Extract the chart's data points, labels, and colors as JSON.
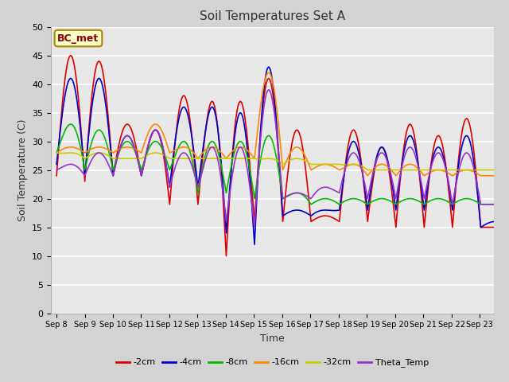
{
  "title": "Soil Temperatures Set A",
  "xlabel": "Time",
  "ylabel": "Soil Temperature (C)",
  "ylim": [
    0,
    50
  ],
  "yticks": [
    0,
    5,
    10,
    15,
    20,
    25,
    30,
    35,
    40,
    45,
    50
  ],
  "annotation": "BC_met",
  "fig_bg": "#d3d3d3",
  "plot_bg": "#e8e8e8",
  "series": [
    {
      "key": "2cm",
      "color": "#dd0000",
      "label": "-2cm"
    },
    {
      "key": "4cm",
      "color": "#0000cc",
      "label": "-4cm"
    },
    {
      "key": "8cm",
      "color": "#00bb00",
      "label": "-8cm"
    },
    {
      "key": "16cm",
      "color": "#ff8800",
      "label": "-16cm"
    },
    {
      "key": "32cm",
      "color": "#cccc00",
      "label": "-32cm"
    },
    {
      "key": "theta",
      "color": "#9933cc",
      "label": "Theta_Temp"
    }
  ],
  "x_labels": [
    "Sep 8",
    "Sep 9",
    "Sep 10",
    "Sep 11",
    "Sep 12",
    "Sep 13",
    "Sep 14",
    "Sep 15",
    "Sep 16",
    "Sep 17",
    "Sep 18",
    "Sep 19",
    "Sep 20",
    "Sep 21",
    "Sep 22",
    "Sep 23"
  ],
  "peaks": {
    "2cm": [
      45,
      44,
      33,
      32,
      38,
      37,
      37,
      41,
      32,
      17,
      32,
      29,
      33,
      31,
      34,
      15
    ],
    "4cm": [
      41,
      41,
      31,
      32,
      36,
      36,
      35,
      43,
      18,
      18,
      30,
      29,
      31,
      29,
      31,
      16
    ],
    "8cm": [
      33,
      32,
      30,
      30,
      30,
      30,
      30,
      31,
      21,
      20,
      20,
      20,
      20,
      20,
      20,
      19
    ],
    "16cm": [
      29,
      29,
      29,
      33,
      29,
      29,
      29,
      42,
      29,
      26,
      26,
      26,
      26,
      25,
      25,
      24
    ],
    "32cm": [
      28,
      28,
      27,
      28,
      27,
      27,
      27,
      27,
      27,
      26,
      26,
      25,
      25,
      25,
      25,
      25
    ],
    "theta": [
      26,
      28,
      31,
      32,
      28,
      29,
      29,
      39,
      21,
      22,
      28,
      28,
      29,
      28,
      28,
      19
    ]
  },
  "troughs": {
    "2cm": [
      24,
      23,
      24,
      24,
      19,
      19,
      10,
      16,
      16,
      16,
      16,
      16,
      15,
      15,
      15,
      15
    ],
    "4cm": [
      26,
      24,
      24,
      24,
      22,
      22,
      14,
      12,
      17,
      17,
      18,
      18,
      18,
      18,
      18,
      15
    ],
    "8cm": [
      28,
      25,
      25,
      25,
      25,
      21,
      21,
      20,
      20,
      19,
      19,
      19,
      19,
      19,
      19,
      19
    ],
    "16cm": [
      28,
      28,
      28,
      28,
      28,
      27,
      27,
      27,
      25,
      25,
      25,
      24,
      24,
      24,
      24,
      24
    ],
    "32cm": [
      28,
      27,
      27,
      27,
      27,
      27,
      27,
      27,
      26,
      26,
      26,
      25,
      25,
      25,
      25,
      25
    ],
    "theta": [
      25,
      24,
      24,
      24,
      22,
      22,
      16,
      15,
      20,
      20,
      21,
      20,
      20,
      20,
      19,
      19
    ]
  }
}
